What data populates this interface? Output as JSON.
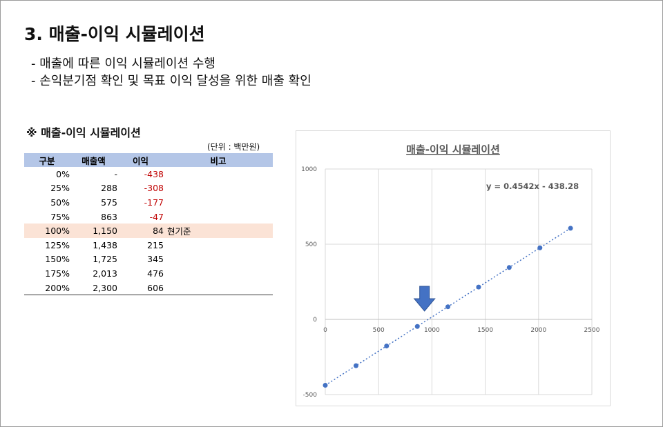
{
  "page": {
    "title": "3. 매출-이익 시뮬레이션",
    "bullets": [
      "- 매출에 따른 이익 시뮬레이션 수행",
      "- 손익분기점 확인 및 목표 이익 달성을 위한 매출 확인"
    ]
  },
  "table": {
    "section_title": "※ 매출-이익 시뮬레이션",
    "unit": "(단위 : 백만원)",
    "headers": [
      "구분",
      "매출액",
      "이익",
      "비고"
    ],
    "rows": [
      {
        "pct": "0%",
        "sales": "-",
        "profit": "-438",
        "note": "",
        "neg": true
      },
      {
        "pct": "25%",
        "sales": "288",
        "profit": "-308",
        "note": "",
        "neg": true
      },
      {
        "pct": "50%",
        "sales": "575",
        "profit": "-177",
        "note": "",
        "neg": true
      },
      {
        "pct": "75%",
        "sales": "863",
        "profit": "-47",
        "note": "",
        "neg": true
      },
      {
        "pct": "100%",
        "sales": "1,150",
        "profit": "84",
        "note": "현기준",
        "neg": false,
        "highlight": true
      },
      {
        "pct": "125%",
        "sales": "1,438",
        "profit": "215",
        "note": "",
        "neg": false
      },
      {
        "pct": "150%",
        "sales": "1,725",
        "profit": "345",
        "note": "",
        "neg": false
      },
      {
        "pct": "175%",
        "sales": "2,013",
        "profit": "476",
        "note": "",
        "neg": false
      },
      {
        "pct": "200%",
        "sales": "2,300",
        "profit": "606",
        "note": "",
        "neg": false
      }
    ]
  },
  "chart_data": {
    "type": "scatter",
    "title": "매출-이익 시뮬레이션",
    "x": [
      0,
      288,
      575,
      863,
      1150,
      1438,
      1725,
      2013,
      2300
    ],
    "y": [
      -438,
      -308,
      -177,
      -47,
      84,
      215,
      345,
      476,
      606
    ],
    "xlim": [
      0,
      2500
    ],
    "ylim": [
      -500,
      1000
    ],
    "xticks": [
      0,
      500,
      1000,
      1500,
      2000,
      2500
    ],
    "yticks": [
      -500,
      0,
      500,
      1000
    ],
    "trendline": {
      "label": "y = 0.4542x - 438.28",
      "slope": 0.4542,
      "intercept": -438.28,
      "style": "dotted"
    },
    "annotation": {
      "type": "down-arrow",
      "x": 963,
      "y": 0
    },
    "grid": true,
    "colors": {
      "points": "#4472c4",
      "arrow": "#4472c4",
      "grid": "#d9d9d9",
      "text": "#595959"
    }
  }
}
